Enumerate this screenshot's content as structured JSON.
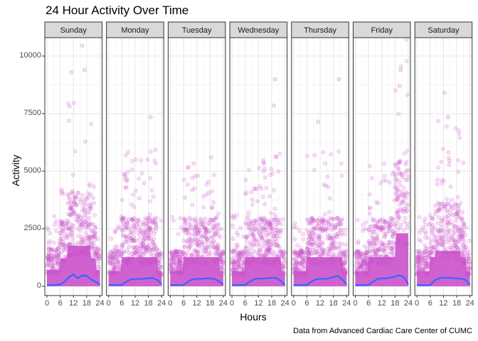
{
  "chart_data": {
    "type": "scatter",
    "title": "24 Hour Activity Over Time",
    "xlabel": "Hours",
    "ylabel": "Activity",
    "caption": "Data from Advanced Cardiac Care Center of CUMC",
    "facets": [
      "Sunday",
      "Monday",
      "Tuesday",
      "Wednesday",
      "Thursday",
      "Friday",
      "Saturday"
    ],
    "xlim": [
      0,
      24
    ],
    "ylim": [
      -400,
      10800
    ],
    "x_ticks": [
      0,
      6,
      12,
      18,
      24
    ],
    "y_ticks": [
      0,
      2500,
      5000,
      7500,
      10000
    ],
    "y_tick_labels": [
      "0",
      "2500",
      "5000",
      "7500",
      "10000"
    ],
    "grid": true,
    "point_color": "#cc55cc",
    "smooth_color": "#3366ff",
    "smooth_series": [
      {
        "name": "Sunday",
        "x": [
          0,
          3,
          6,
          8,
          10,
          12,
          14,
          16,
          18,
          20,
          22,
          24
        ],
        "y": [
          60,
          50,
          80,
          200,
          400,
          520,
          350,
          480,
          450,
          300,
          200,
          80
        ]
      },
      {
        "name": "Monday",
        "x": [
          0,
          3,
          6,
          8,
          10,
          12,
          14,
          16,
          18,
          20,
          22,
          24
        ],
        "y": [
          60,
          50,
          60,
          200,
          300,
          320,
          320,
          330,
          350,
          360,
          280,
          100
        ]
      },
      {
        "name": "Tuesday",
        "x": [
          0,
          3,
          6,
          8,
          10,
          12,
          14,
          16,
          18,
          20,
          22,
          24
        ],
        "y": [
          60,
          50,
          60,
          200,
          300,
          330,
          320,
          340,
          350,
          320,
          220,
          80
        ]
      },
      {
        "name": "Wednesday",
        "x": [
          0,
          3,
          6,
          8,
          10,
          12,
          14,
          16,
          18,
          20,
          22,
          24
        ],
        "y": [
          60,
          50,
          60,
          200,
          300,
          340,
          330,
          350,
          370,
          360,
          250,
          60
        ]
      },
      {
        "name": "Thursday",
        "x": [
          0,
          3,
          6,
          8,
          10,
          12,
          14,
          16,
          18,
          20,
          22,
          24
        ],
        "y": [
          60,
          50,
          60,
          200,
          300,
          330,
          320,
          350,
          400,
          450,
          300,
          80
        ]
      },
      {
        "name": "Friday",
        "x": [
          0,
          3,
          6,
          8,
          10,
          12,
          14,
          16,
          18,
          20,
          22,
          24
        ],
        "y": [
          60,
          50,
          60,
          200,
          320,
          350,
          340,
          380,
          420,
          480,
          400,
          80
        ]
      },
      {
        "name": "Saturday",
        "x": [
          0,
          3,
          6,
          8,
          10,
          12,
          14,
          16,
          18,
          20,
          22,
          24
        ],
        "y": [
          60,
          40,
          60,
          250,
          350,
          380,
          370,
          360,
          350,
          330,
          280,
          70
        ]
      }
    ],
    "notable_points": [
      {
        "facet": "Sunday",
        "x": 16,
        "y": 10450
      },
      {
        "facet": "Sunday",
        "x": 11,
        "y": 9300
      },
      {
        "facet": "Sunday",
        "x": 17,
        "y": 9400
      },
      {
        "facet": "Monday",
        "x": 19,
        "y": 7350
      },
      {
        "facet": "Tuesday",
        "x": 18.5,
        "y": 5600
      },
      {
        "facet": "Wednesday",
        "x": 19.5,
        "y": 9000
      },
      {
        "facet": "Wednesday",
        "x": 19,
        "y": 7850
      },
      {
        "facet": "Thursday",
        "x": 20.5,
        "y": 9000
      },
      {
        "facet": "Thursday",
        "x": 11,
        "y": 7150
      },
      {
        "facet": "Friday",
        "x": 20.5,
        "y": 9400
      },
      {
        "facet": "Friday",
        "x": 20,
        "y": 8700
      },
      {
        "facet": "Saturday",
        "x": 12.5,
        "y": 8400
      },
      {
        "facet": "Saturday",
        "x": 14,
        "y": 7350
      }
    ]
  }
}
